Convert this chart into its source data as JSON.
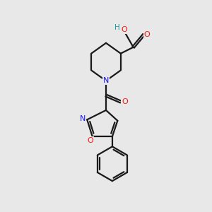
{
  "bg_color": "#e8e8e8",
  "bond_color": "#1a1a1a",
  "N_color": "#1414ff",
  "O_color": "#ff1414",
  "OH_color": "#14a0a0",
  "bond_width": 1.6,
  "figsize": [
    3.0,
    3.0
  ],
  "dpi": 100,
  "xlim": [
    0,
    10
  ],
  "ylim": [
    0,
    10
  ]
}
